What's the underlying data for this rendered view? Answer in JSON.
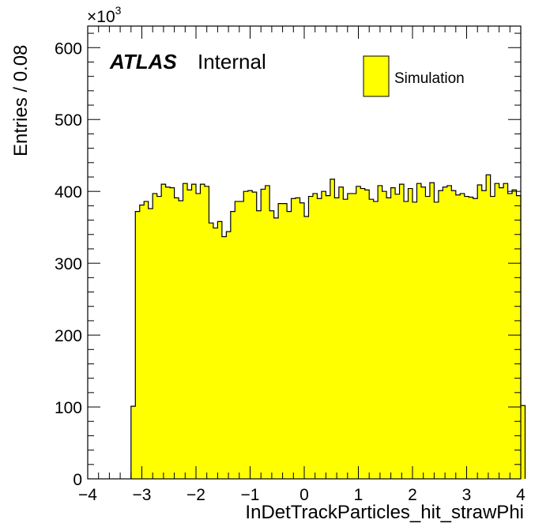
{
  "chart_data": {
    "type": "bar",
    "xlabel": "InDetTrackParticles_hit_strawPhi",
    "ylabel": "Entries / 0.08",
    "y_multiplier_label": "×10",
    "y_multiplier_exponent": "3",
    "xlim": [
      -4,
      4
    ],
    "ylim": [
      0,
      630
    ],
    "x_ticks": [
      "−4",
      "−3",
      "−2",
      "−1",
      "0",
      "1",
      "2",
      "3",
      "4"
    ],
    "x_tick_values": [
      -4,
      -3,
      -2,
      -1,
      0,
      1,
      2,
      3,
      4
    ],
    "y_ticks": [
      "0",
      "100",
      "200",
      "300",
      "400",
      "500",
      "600"
    ],
    "y_tick_values": [
      0,
      100,
      200,
      300,
      400,
      500,
      600
    ],
    "bin_start": -3.2,
    "bin_width": 0.08,
    "values": [
      101,
      372,
      381,
      386,
      376,
      397,
      393,
      410,
      406,
      405,
      391,
      387,
      411,
      402,
      410,
      397,
      410,
      407,
      356,
      349,
      358,
      337,
      344,
      372,
      386,
      386,
      400,
      401,
      399,
      373,
      403,
      408,
      373,
      363,
      383,
      383,
      372,
      390,
      391,
      384,
      365,
      393,
      397,
      390,
      400,
      394,
      417,
      391,
      406,
      389,
      397,
      397,
      407,
      404,
      402,
      389,
      386,
      408,
      400,
      391,
      405,
      396,
      410,
      386,
      404,
      385,
      411,
      406,
      393,
      412,
      385,
      401,
      406,
      408,
      401,
      395,
      397,
      393,
      392,
      390,
      409,
      401,
      423,
      393,
      411,
      405,
      411,
      397,
      402,
      394,
      102
    ],
    "series": [
      {
        "name": "Simulation",
        "color": "#ffff00"
      }
    ],
    "legend_position": "top-right",
    "grid": false
  },
  "labels": {
    "atlas": "ATLAS",
    "internal": "Internal"
  },
  "colors": {
    "fill": "#ffff00",
    "line": "#000000"
  }
}
